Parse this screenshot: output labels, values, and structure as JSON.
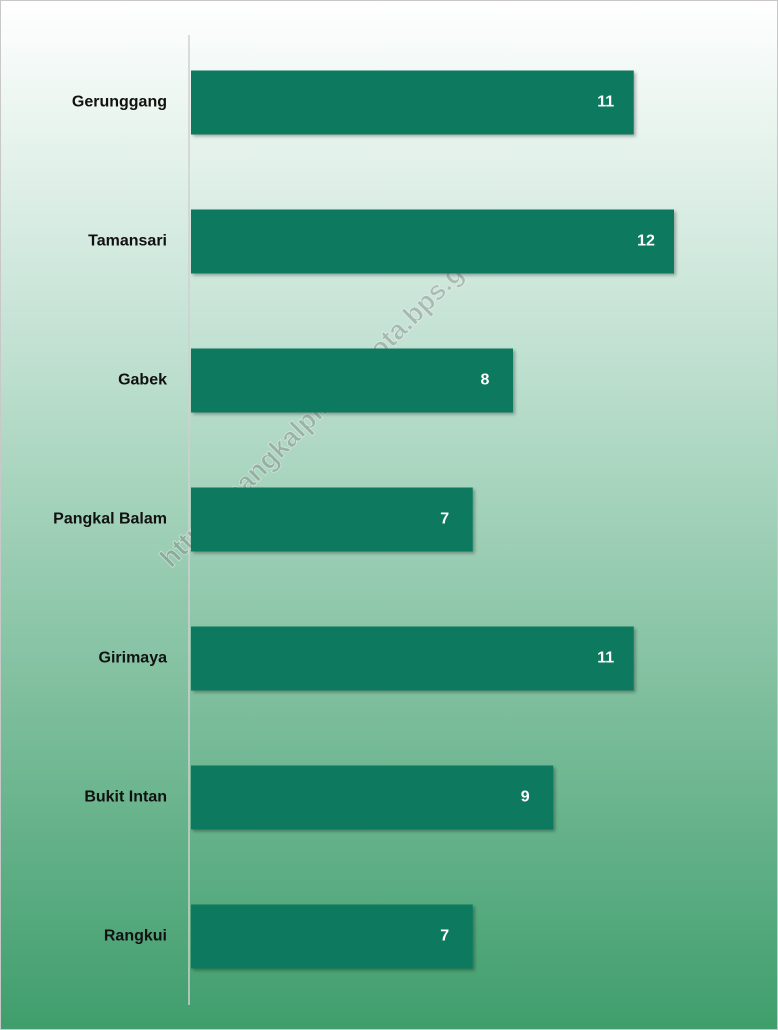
{
  "chart_data": {
    "type": "bar",
    "orientation": "horizontal",
    "categories": [
      "Gerunggang",
      "Tamansari",
      "Gabek",
      "Pangkal Balam",
      "Girimaya",
      "Bukit Intan",
      "Rangkui"
    ],
    "values": [
      11,
      12,
      8,
      7,
      11,
      9,
      7
    ],
    "color": "#0b7a5e",
    "xlim": [
      0,
      14
    ],
    "watermark": "https://pangkalpinangkota.bps.go.id"
  }
}
